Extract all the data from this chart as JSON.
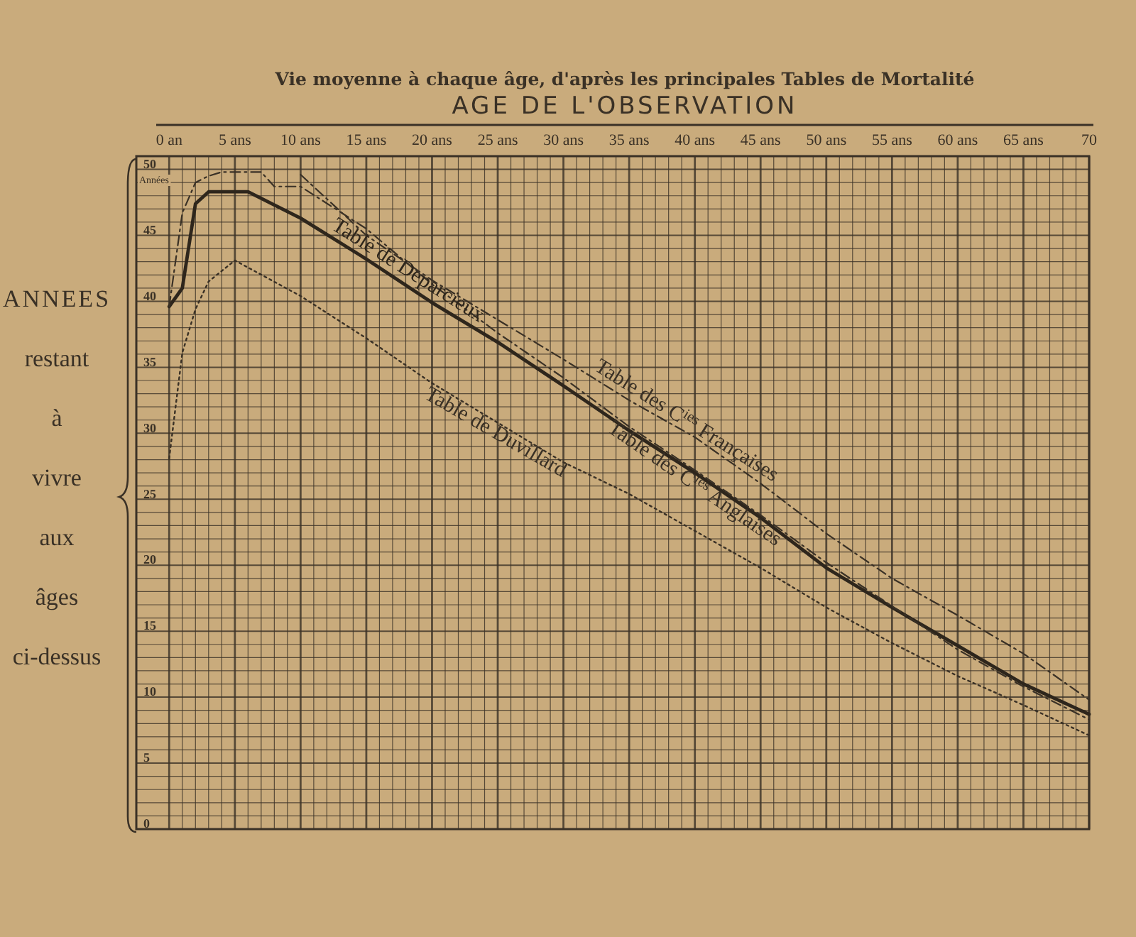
{
  "chart_data": {
    "type": "line",
    "title": "Vie moyenne à chaque âge, d'après les principales Tables de Mortalité",
    "xlabel": "AGE DE L'OBSERVATION",
    "ylabel": "ANNEES restant à vivre aux âges ci-dessus",
    "annotations": [
      "Années"
    ],
    "xlim": [
      -2.5,
      70
    ],
    "ylim": [
      0,
      51
    ],
    "xticks": [
      {
        "value": 0,
        "label": "0 an"
      },
      {
        "value": 1,
        "label": null
      },
      {
        "value": 2,
        "label": null
      },
      {
        "value": 3,
        "label": null
      },
      {
        "value": 4,
        "label": null
      },
      {
        "value": 5,
        "label": "5 ans"
      },
      {
        "value": 6,
        "label": null
      },
      {
        "value": 7,
        "label": null
      },
      {
        "value": 8,
        "label": null
      },
      {
        "value": 9,
        "label": null
      },
      {
        "value": 10,
        "label": "10 ans"
      },
      {
        "value": 11,
        "label": null
      },
      {
        "value": 12,
        "label": null
      },
      {
        "value": 13,
        "label": null
      },
      {
        "value": 14,
        "label": null
      },
      {
        "value": 15,
        "label": "15 ans"
      },
      {
        "value": 16,
        "label": null
      },
      {
        "value": 17,
        "label": null
      },
      {
        "value": 18,
        "label": null
      },
      {
        "value": 19,
        "label": null
      },
      {
        "value": 20,
        "label": "20 ans"
      },
      {
        "value": 21,
        "label": null
      },
      {
        "value": 22,
        "label": null
      },
      {
        "value": 23,
        "label": null
      },
      {
        "value": 24,
        "label": null
      },
      {
        "value": 25,
        "label": "25 ans"
      },
      {
        "value": 26,
        "label": null
      },
      {
        "value": 27,
        "label": null
      },
      {
        "value": 28,
        "label": null
      },
      {
        "value": 29,
        "label": null
      },
      {
        "value": 30,
        "label": "30 ans"
      },
      {
        "value": 31,
        "label": null
      },
      {
        "value": 32,
        "label": null
      },
      {
        "value": 33,
        "label": null
      },
      {
        "value": 34,
        "label": null
      },
      {
        "value": 35,
        "label": "35 ans"
      },
      {
        "value": 36,
        "label": null
      },
      {
        "value": 37,
        "label": null
      },
      {
        "value": 38,
        "label": null
      },
      {
        "value": 39,
        "label": null
      },
      {
        "value": 40,
        "label": "40 ans"
      },
      {
        "value": 41,
        "label": null
      },
      {
        "value": 42,
        "label": null
      },
      {
        "value": 43,
        "label": null
      },
      {
        "value": 44,
        "label": null
      },
      {
        "value": 45,
        "label": "45 ans"
      },
      {
        "value": 46,
        "label": null
      },
      {
        "value": 47,
        "label": null
      },
      {
        "value": 48,
        "label": null
      },
      {
        "value": 49,
        "label": null
      },
      {
        "value": 50,
        "label": "50 ans"
      },
      {
        "value": 51,
        "label": null
      },
      {
        "value": 52,
        "label": null
      },
      {
        "value": 53,
        "label": null
      },
      {
        "value": 54,
        "label": null
      },
      {
        "value": 55,
        "label": "55 ans"
      },
      {
        "value": 56,
        "label": null
      },
      {
        "value": 57,
        "label": null
      },
      {
        "value": 58,
        "label": null
      },
      {
        "value": 59,
        "label": null
      },
      {
        "value": 60,
        "label": "60 ans"
      },
      {
        "value": 61,
        "label": null
      },
      {
        "value": 62,
        "label": null
      },
      {
        "value": 63,
        "label": null
      },
      {
        "value": 64,
        "label": null
      },
      {
        "value": 65,
        "label": "65 ans"
      },
      {
        "value": 66,
        "label": null
      },
      {
        "value": 67,
        "label": null
      },
      {
        "value": 68,
        "label": null
      },
      {
        "value": 69,
        "label": null
      },
      {
        "value": 70,
        "label": "70"
      }
    ],
    "yticks": [
      0,
      {
        "value": 1,
        "label": null
      },
      {
        "value": 2,
        "label": null
      },
      {
        "value": 3,
        "label": null
      },
      {
        "value": 4,
        "label": null
      },
      5,
      {
        "value": 6,
        "label": null
      },
      {
        "value": 7,
        "label": null
      },
      {
        "value": 8,
        "label": null
      },
      {
        "value": 9,
        "label": null
      },
      10,
      {
        "value": 11,
        "label": null
      },
      {
        "value": 12,
        "label": null
      },
      {
        "value": 13,
        "label": null
      },
      {
        "value": 14,
        "label": null
      },
      15,
      {
        "value": 16,
        "label": null
      },
      {
        "value": 17,
        "label": null
      },
      {
        "value": 18,
        "label": null
      },
      {
        "value": 19,
        "label": null
      },
      20,
      {
        "value": 21,
        "label": null
      },
      {
        "value": 22,
        "label": null
      },
      {
        "value": 23,
        "label": null
      },
      {
        "value": 24,
        "label": null
      },
      25,
      {
        "value": 26,
        "label": null
      },
      {
        "value": 27,
        "label": null
      },
      {
        "value": 28,
        "label": null
      },
      {
        "value": 29,
        "label": null
      },
      30,
      {
        "value": 31,
        "label": null
      },
      {
        "value": 32,
        "label": null
      },
      {
        "value": 33,
        "label": null
      },
      {
        "value": 34,
        "label": null
      },
      35,
      {
        "value": 36,
        "label": null
      },
      {
        "value": 37,
        "label": null
      },
      {
        "value": 38,
        "label": null
      },
      {
        "value": 39,
        "label": null
      },
      40,
      {
        "value": 41,
        "label": null
      },
      {
        "value": 42,
        "label": null
      },
      {
        "value": 43,
        "label": null
      },
      {
        "value": 44,
        "label": null
      },
      45,
      {
        "value": 46,
        "label": null
      },
      {
        "value": 47,
        "label": null
      },
      {
        "value": 48,
        "label": null
      },
      {
        "value": 49,
        "label": null
      },
      50,
      {
        "value": 51,
        "label": null
      }
    ],
    "grid": true,
    "marker": "none",
    "series": [
      {
        "name": "Table de Deparcieux",
        "color": "#2e261c",
        "line_style": "solid",
        "x": [
          0,
          1,
          2,
          3,
          6,
          10,
          15,
          20,
          25,
          30,
          35,
          40,
          45,
          50,
          55,
          60,
          65,
          70
        ],
        "values": [
          39.6,
          41,
          47.4,
          48.3,
          48.3,
          46.3,
          43.2,
          39.9,
          36.9,
          33.6,
          30.2,
          27,
          23.6,
          19.8,
          16.8,
          13.9,
          11,
          8.7
        ]
      },
      {
        "name": "Table de Duvillard",
        "color": "#3a3126",
        "line_style": "dotted",
        "x": [
          0,
          1,
          2,
          3,
          5,
          10,
          15,
          20,
          25,
          30,
          35,
          40,
          45,
          50,
          55,
          60,
          65,
          70
        ],
        "values": [
          28.1,
          36.1,
          39.4,
          41.5,
          43.1,
          40.4,
          37.2,
          33.8,
          30.8,
          27.8,
          25.4,
          22.6,
          19.8,
          16.8,
          14.1,
          11.6,
          9.4,
          7.1
        ]
      },
      {
        "name": "Table des C$^{ies}$ Françaises",
        "color": "#3a3126",
        "line_style": "dashed",
        "x": [
          10,
          15,
          20,
          25,
          30,
          35,
          40,
          45,
          50,
          55,
          60,
          65,
          70
        ],
        "values": [
          49.6,
          45,
          41.6,
          38.6,
          35.6,
          32.5,
          29.7,
          26.2,
          22.4,
          19,
          16.2,
          13.3,
          9.8
        ]
      },
      {
        "name": "Table des C$^{ies}$ Anglaises",
        "color": "#3a3126",
        "line_style": "dashed",
        "x": [
          0,
          1,
          2,
          3,
          4,
          7,
          8,
          10,
          15,
          20,
          25,
          30,
          35,
          40,
          45,
          50,
          55,
          60,
          65,
          70
        ],
        "values": [
          39.6,
          46.7,
          49,
          49.5,
          49.8,
          49.8,
          48.7,
          48.7,
          45.5,
          41.3,
          37.6,
          34.2,
          30.5,
          27.2,
          23.8,
          20.2,
          16.9,
          13.6,
          10.8,
          8.3
        ]
      }
    ]
  }
}
